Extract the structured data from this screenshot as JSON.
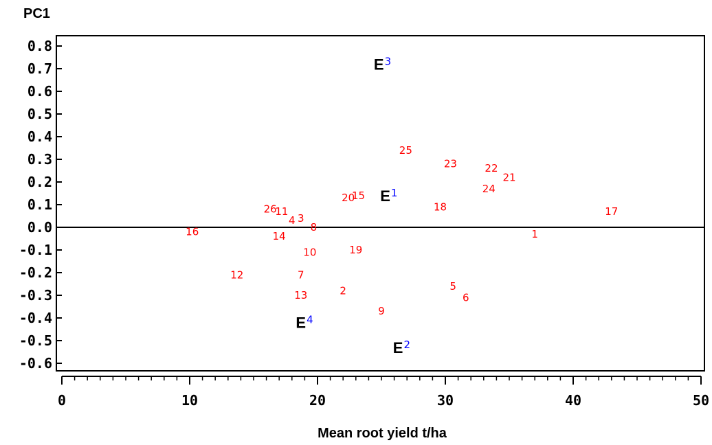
{
  "chart_data": {
    "type": "scatter",
    "ylabel": "PC1",
    "xlabel": "Mean root yield t/ha",
    "xlim": [
      0,
      50
    ],
    "ylim": [
      -0.62,
      0.82
    ],
    "x_ticks": [
      0,
      10,
      20,
      30,
      40,
      50
    ],
    "x_tick_labels": [
      "0",
      "10",
      "20",
      "30",
      "40",
      "50"
    ],
    "y_ticks": [
      0.8,
      0.7,
      0.6,
      0.5,
      0.4,
      0.3,
      0.2,
      0.1,
      0.0,
      -0.1,
      -0.2,
      -0.3,
      -0.4,
      -0.5,
      -0.6
    ],
    "y_tick_labels": [
      "0.8",
      "0.7",
      "0.6",
      "0.5",
      "0.4",
      "0.3",
      "0.2",
      "0.1",
      "0.0",
      "-0.1",
      "-0.2",
      "-0.3",
      "-0.4",
      "-0.5",
      "-0.6"
    ],
    "reference_line_y": 0.0,
    "grid": false,
    "genotype_color": "#ff0000",
    "environment_color": "#0000ff",
    "genotypes": [
      {
        "label": "1",
        "x": 37.0,
        "y": -0.03
      },
      {
        "label": "2",
        "x": 22.0,
        "y": -0.28
      },
      {
        "label": "3",
        "x": 18.7,
        "y": 0.04
      },
      {
        "label": "4",
        "x": 18.0,
        "y": 0.03
      },
      {
        "label": "5",
        "x": 30.6,
        "y": -0.26
      },
      {
        "label": "6",
        "x": 31.6,
        "y": -0.31
      },
      {
        "label": "7",
        "x": 18.7,
        "y": -0.21
      },
      {
        "label": "8",
        "x": 19.7,
        "y": 0.0
      },
      {
        "label": "9",
        "x": 25.0,
        "y": -0.37
      },
      {
        "label": "10",
        "x": 19.4,
        "y": -0.11
      },
      {
        "label": "11",
        "x": 17.2,
        "y": 0.07
      },
      {
        "label": "12",
        "x": 13.7,
        "y": -0.21
      },
      {
        "label": "13",
        "x": 18.7,
        "y": -0.3
      },
      {
        "label": "14",
        "x": 17.0,
        "y": -0.04
      },
      {
        "label": "15",
        "x": 23.2,
        "y": 0.14
      },
      {
        "label": "16",
        "x": 10.2,
        "y": -0.02
      },
      {
        "label": "17",
        "x": 43.0,
        "y": 0.07
      },
      {
        "label": "18",
        "x": 29.6,
        "y": 0.09
      },
      {
        "label": "19",
        "x": 23.0,
        "y": -0.1
      },
      {
        "label": "20",
        "x": 22.4,
        "y": 0.13
      },
      {
        "label": "21",
        "x": 35.0,
        "y": 0.22
      },
      {
        "label": "22",
        "x": 33.6,
        "y": 0.26
      },
      {
        "label": "23",
        "x": 30.4,
        "y": 0.28
      },
      {
        "label": "24",
        "x": 33.4,
        "y": 0.17
      },
      {
        "label": "25",
        "x": 26.9,
        "y": 0.34
      },
      {
        "label": "26",
        "x": 16.3,
        "y": 0.08
      }
    ],
    "environments": [
      {
        "letter": "E",
        "number": "1",
        "x": 25.8,
        "y": 0.14
      },
      {
        "letter": "E",
        "number": "2",
        "x": 26.8,
        "y": -0.53
      },
      {
        "letter": "E",
        "number": "3",
        "x": 25.3,
        "y": 0.72
      },
      {
        "letter": "E",
        "number": "4",
        "x": 19.2,
        "y": -0.42
      }
    ]
  }
}
